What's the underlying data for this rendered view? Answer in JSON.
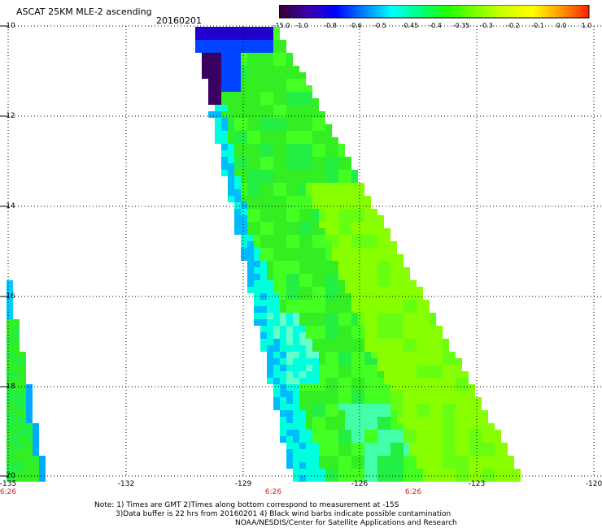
{
  "header": {
    "title": "ASCAT 25KM MLE-2 ascending",
    "date": "20160201"
  },
  "colorbar": {
    "labels": [
      "-15.0",
      "-1.0",
      "-0.8",
      "-0.6",
      "-0.5",
      "-0.45",
      "-0.4",
      "-0.35",
      "-0.3",
      "-0.2",
      "-0.1",
      "0.0",
      "1.0"
    ],
    "gradient": [
      "#3a0030",
      "#3b00a8",
      "#0000ff",
      "#0080ff",
      "#00ffff",
      "#00ff80",
      "#20ff00",
      "#80ff00",
      "#d0ff00",
      "#ffff00",
      "#ff9900",
      "#ff2000"
    ]
  },
  "axes": {
    "y_labels": [
      "-10",
      "-12",
      "-14",
      "-16",
      "-18",
      "-20"
    ],
    "x_labels": [
      "-135",
      "-132",
      "-129",
      "-126",
      "-123",
      "-120"
    ],
    "time_labels": [
      "6:26",
      "6:26",
      "6:26"
    ]
  },
  "notes": {
    "line1": "Note: 1) Times are GMT 2)Times along bottom correspond to measurement at -15S",
    "line2": "3)Data buffer is 22 hrs from 20160201 4) Black wind barbs indicate possible contamination",
    "line3": "NOAA/NESDIS/Center for Satellite Applications and Research"
  },
  "map": {
    "lat_range": [
      -20,
      -10
    ],
    "lon_range": [
      -135,
      -120
    ],
    "colors": {
      "green": "#33ee22",
      "yellowgreen": "#88ff00",
      "cyan": "#00ffdd",
      "blue": "#0044ff",
      "deepblue": "#2200cc",
      "purple": "#3a0060",
      "grid": "#000000"
    }
  }
}
